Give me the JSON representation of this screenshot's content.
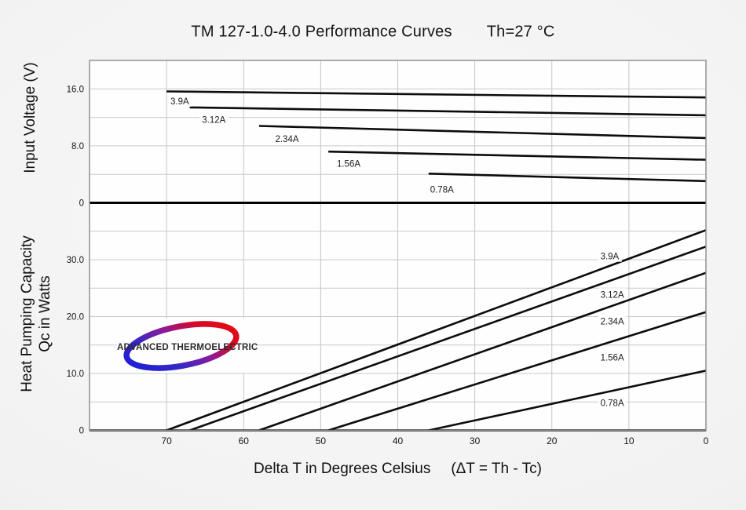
{
  "title": {
    "main": "TM 127-1.0-4.0 Performance Curves",
    "condition": "Th=27 °C"
  },
  "logo": {
    "text": "ADVANCED THERMOELECTRIC",
    "swoosh_colors": {
      "blue": "#1f1fd6",
      "purple": "#8a1b9c",
      "red": "#e30b13"
    }
  },
  "chart_data": {
    "type": "line",
    "x_axis": {
      "title": "Delta T in Degrees Celsius",
      "title_note": "(ΔT = Th - Tc)",
      "ticks": [
        70,
        60,
        50,
        40,
        30,
        20,
        10,
        0
      ],
      "range": [
        80,
        0
      ],
      "reversed": true,
      "grid_step": 10
    },
    "panels": [
      {
        "id": "input-voltage",
        "y_title": "Input Voltage (V)",
        "ylim": [
          0,
          20
        ],
        "yticks": [
          {
            "value": 0,
            "label": "0"
          },
          {
            "value": 8,
            "label": "8.0"
          },
          {
            "value": 16,
            "label": "16.0"
          }
        ],
        "grid_values": [
          4,
          8,
          12,
          16
        ],
        "series": [
          {
            "name": "3.9A",
            "points": [
              [
                70,
                15.65
              ],
              [
                0,
                14.8
              ]
            ],
            "label": {
              "t": 69.5,
              "v": 14.3
            }
          },
          {
            "name": "3.12A",
            "points": [
              [
                67,
                13.4
              ],
              [
                0,
                12.3
              ]
            ],
            "label": {
              "t": 65.4,
              "v": 11.7
            }
          },
          {
            "name": "2.34A",
            "points": [
              [
                58,
                10.8
              ],
              [
                0,
                9.1
              ]
            ],
            "label": {
              "t": 55.9,
              "v": 9.0
            }
          },
          {
            "name": "1.56A",
            "points": [
              [
                49,
                7.2
              ],
              [
                0,
                6.05
              ]
            ],
            "label": {
              "t": 47.9,
              "v": 5.5
            }
          },
          {
            "name": "0.78A",
            "points": [
              [
                36,
                4.1
              ],
              [
                0,
                3.05
              ]
            ],
            "label": {
              "t": 35.8,
              "v": 1.9
            }
          }
        ]
      },
      {
        "id": "heat-pumping-capacity",
        "y_title_line1": "Heat Pumping Capacity",
        "y_title_line2": "Qc in Watts",
        "ylim": [
          0,
          40
        ],
        "yticks": [
          {
            "value": 0,
            "label": "0"
          },
          {
            "value": 10,
            "label": "10.0"
          },
          {
            "value": 20,
            "label": "20.0"
          },
          {
            "value": 30,
            "label": "30.0"
          }
        ],
        "grid_values": [
          5,
          10,
          15,
          20,
          25,
          30,
          35
        ],
        "series": [
          {
            "name": "3.9A",
            "points": [
              [
                70,
                0
              ],
              [
                0,
                35.2
              ]
            ],
            "label": {
              "t": 13.7,
              "v": 30.6
            }
          },
          {
            "name": "3.12A",
            "points": [
              [
                67,
                0
              ],
              [
                0,
                32.3
              ]
            ],
            "label": {
              "t": 13.7,
              "v": 23.9
            }
          },
          {
            "name": "2.34A",
            "points": [
              [
                58,
                0
              ],
              [
                0,
                27.7
              ]
            ],
            "label": {
              "t": 13.7,
              "v": 19.2
            }
          },
          {
            "name": "1.56A",
            "points": [
              [
                49,
                0
              ],
              [
                0,
                20.8
              ]
            ],
            "label": {
              "t": 13.7,
              "v": 12.8
            }
          },
          {
            "name": "0.78A",
            "points": [
              [
                36,
                0
              ],
              [
                0,
                10.5
              ]
            ],
            "label": {
              "t": 13.7,
              "v": 4.8
            }
          }
        ]
      }
    ]
  }
}
